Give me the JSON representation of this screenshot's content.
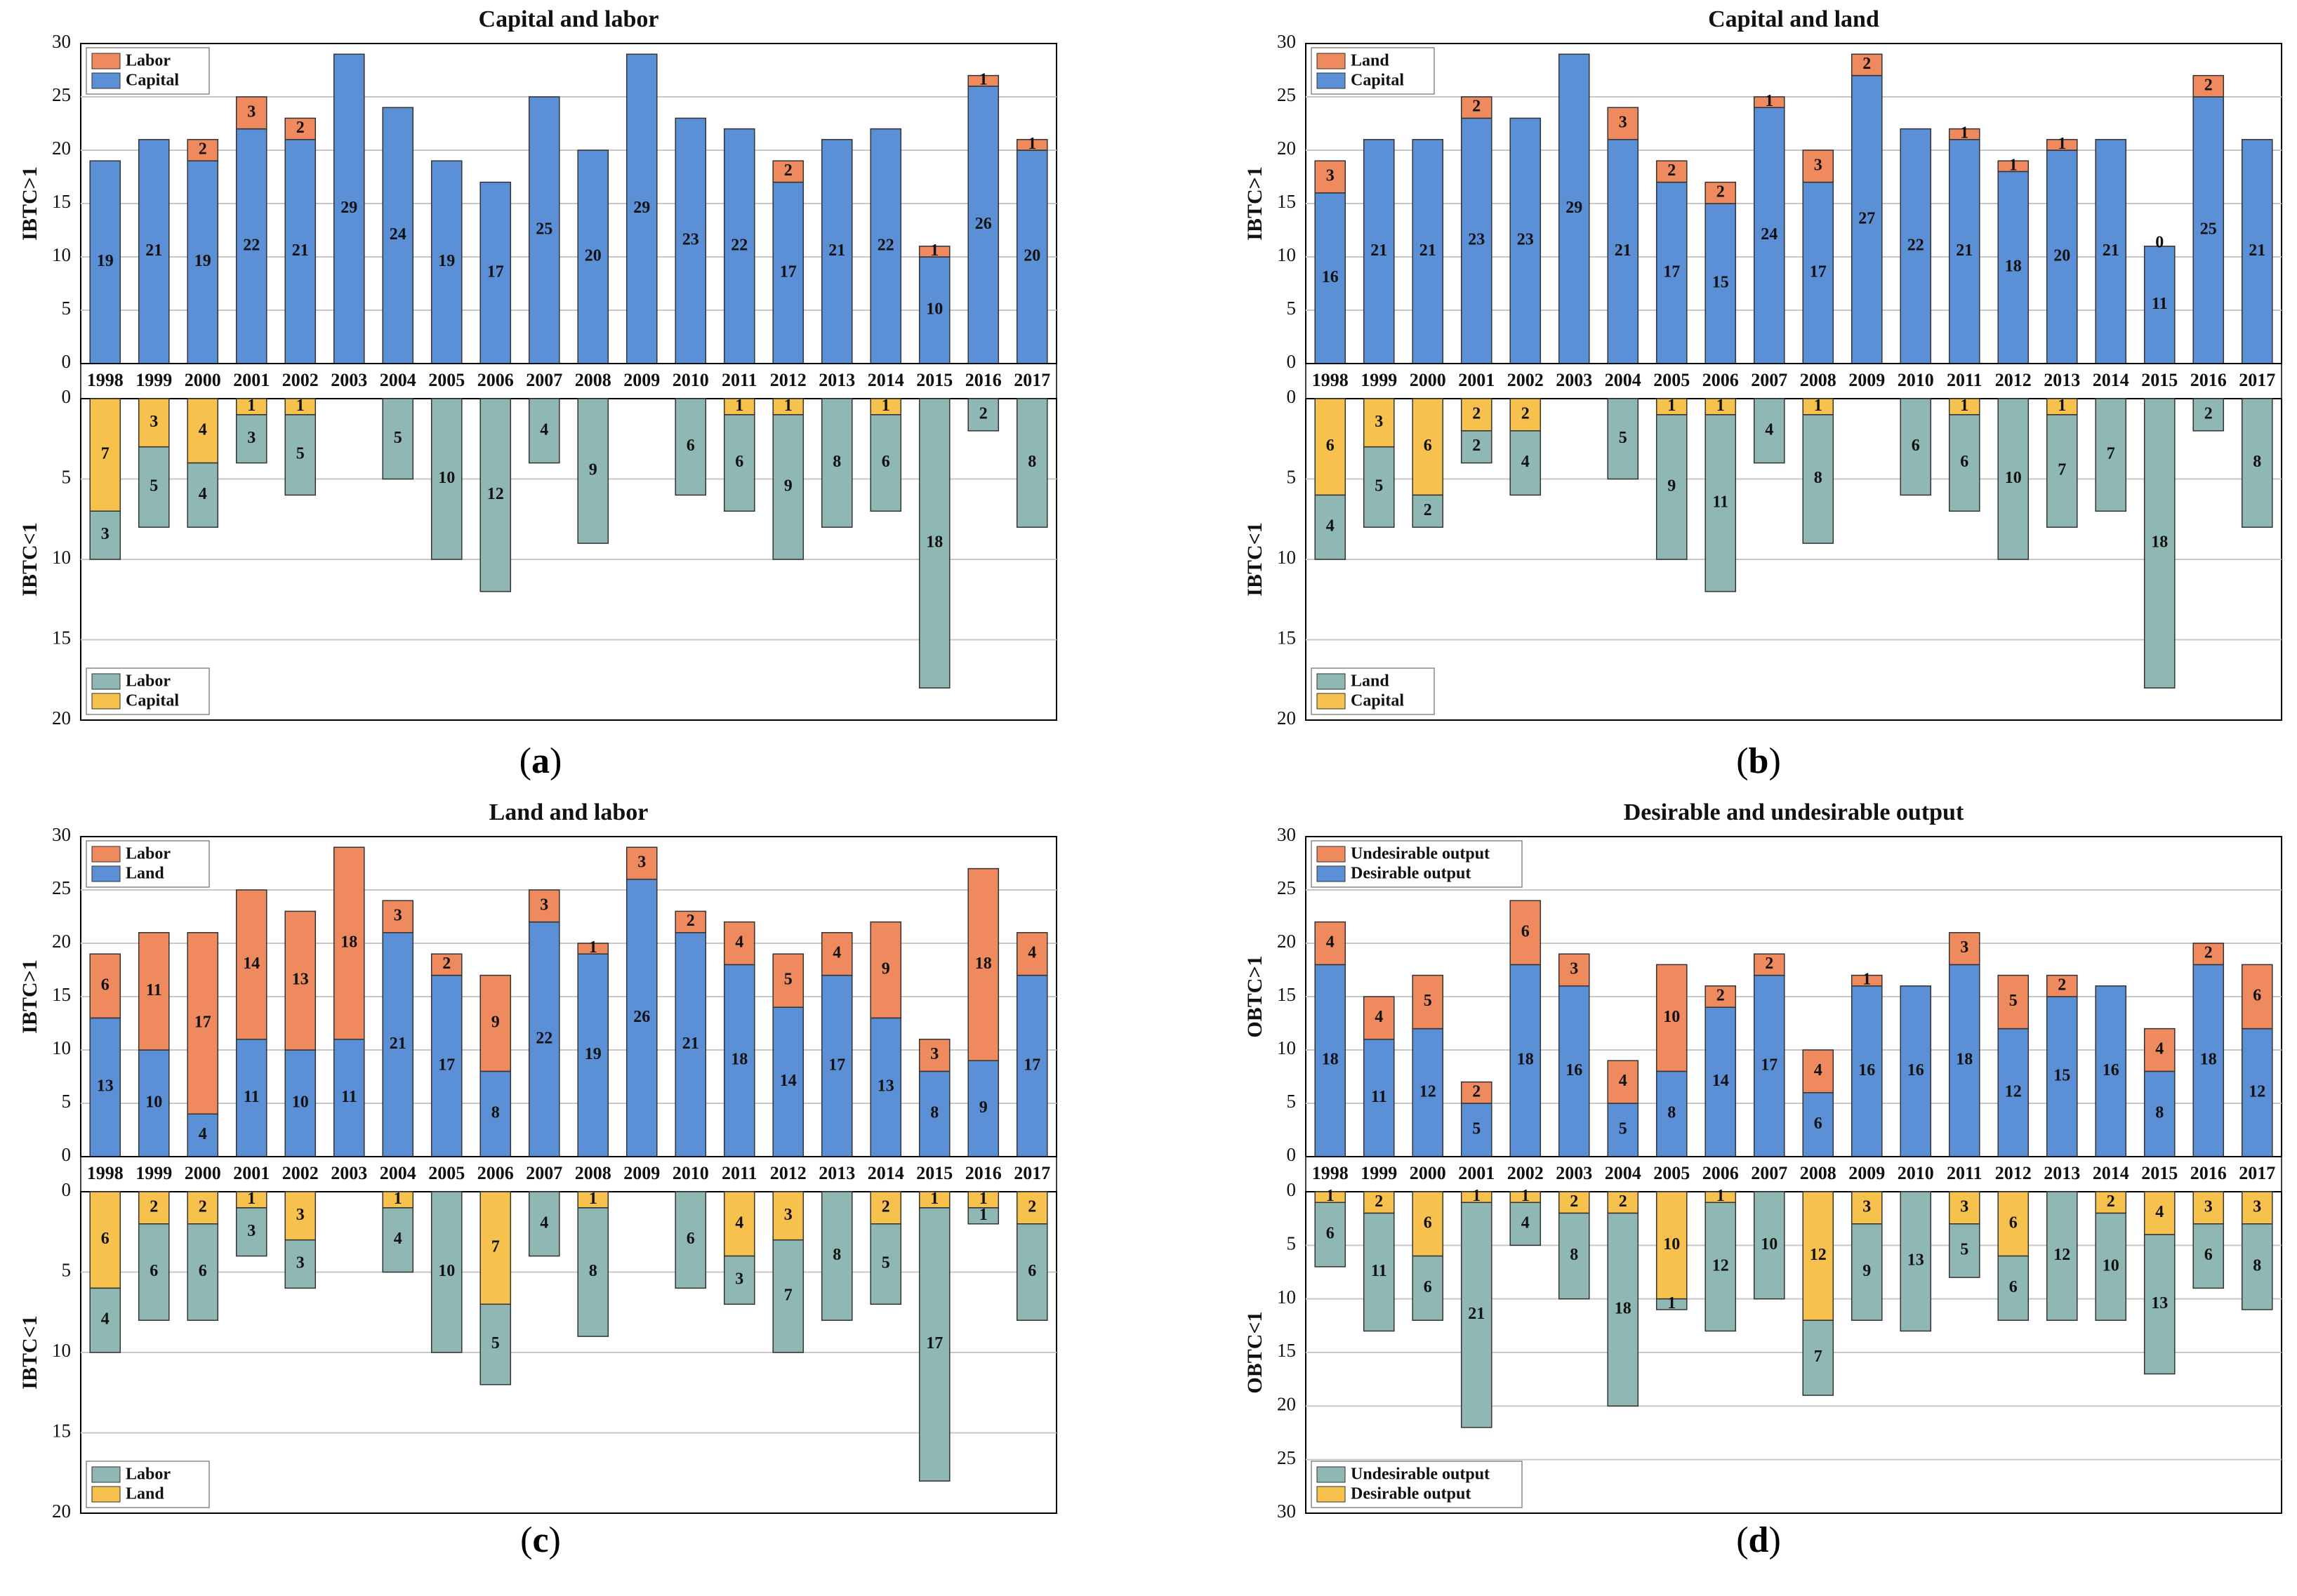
{
  "colors": {
    "top_base": "#5b8fd6",
    "top_stack": "#ee8a5d",
    "bottom_base": "#8fb8b4",
    "bottom_stack": "#f6c14c",
    "grid": "#c8c8c8",
    "axis": "#000000"
  },
  "captions": [
    "(a)",
    "(b)",
    "(c)",
    "(d)"
  ],
  "chart_data": [
    {
      "type": "bar",
      "title": "Capital and labor",
      "categories": [
        "1998",
        "1999",
        "2000",
        "2001",
        "2002",
        "2003",
        "2004",
        "2005",
        "2006",
        "2007",
        "2008",
        "2009",
        "2010",
        "2011",
        "2012",
        "2013",
        "2014",
        "2015",
        "2016",
        "2017"
      ],
      "top": {
        "ylabel": "IBTC>1",
        "ylim": [
          0,
          30
        ],
        "ticks": [
          "0",
          "5",
          "10",
          "15",
          "20",
          "25",
          "30"
        ],
        "legend": [
          "Labor",
          "Capital"
        ],
        "base_name": "Capital",
        "stack_name": "Labor",
        "base": [
          19,
          21,
          19,
          22,
          21,
          29,
          24,
          19,
          17,
          25,
          20,
          29,
          23,
          22,
          17,
          21,
          22,
          10,
          26,
          20
        ],
        "stack": [
          0,
          0,
          2,
          3,
          2,
          0,
          0,
          0,
          0,
          0,
          0,
          0,
          0,
          0,
          2,
          0,
          0,
          1,
          1,
          1
        ],
        "base_labels": [
          "19",
          "21",
          "19",
          "22",
          "21",
          "29",
          "24",
          "19",
          "17",
          "25",
          "20",
          "29",
          "23",
          "22",
          "17",
          "21",
          "22",
          "10",
          "26",
          "20"
        ],
        "stack_labels": [
          "",
          "",
          "2",
          "3",
          "2",
          "",
          "",
          "",
          "",
          "",
          "",
          "",
          "",
          "",
          "2",
          "",
          "",
          "1",
          "1",
          "1"
        ]
      },
      "bottom": {
        "ylabel": "IBTC<1",
        "ylim": [
          0,
          20
        ],
        "ticks": [
          "0",
          "5",
          "10",
          "15",
          "20"
        ],
        "legend": [
          "Labor",
          "Capital"
        ],
        "base_name": "Labor",
        "stack_name": "Capital",
        "stack": [
          7,
          3,
          4,
          1,
          1,
          0,
          0,
          0,
          0,
          0,
          0,
          0,
          0,
          1,
          1,
          0,
          1,
          0,
          0,
          0
        ],
        "base": [
          3,
          5,
          4,
          3,
          5,
          0,
          5,
          10,
          12,
          4,
          9,
          0,
          6,
          6,
          9,
          8,
          6,
          18,
          2,
          8
        ],
        "stack_labels": [
          "7",
          "3",
          "4",
          "1",
          "1",
          "",
          "",
          "",
          "",
          "",
          "",
          "",
          "",
          "1",
          "1",
          "",
          "1",
          "",
          "",
          ""
        ],
        "base_labels": [
          "3",
          "5",
          "4",
          "3",
          "5",
          "",
          "5",
          "10",
          "12",
          "4",
          "9",
          "",
          "6",
          "6",
          "9",
          "8",
          "6",
          "18",
          "2",
          "8"
        ]
      }
    },
    {
      "type": "bar",
      "title": "Capital and land",
      "categories": [
        "1998",
        "1999",
        "2000",
        "2001",
        "2002",
        "2003",
        "2004",
        "2005",
        "2006",
        "2007",
        "2008",
        "2009",
        "2010",
        "2011",
        "2012",
        "2013",
        "2014",
        "2015",
        "2016",
        "2017"
      ],
      "top": {
        "ylabel": "IBTC>1",
        "ylim": [
          0,
          30
        ],
        "ticks": [
          "0",
          "5",
          "10",
          "15",
          "20",
          "25",
          "30"
        ],
        "legend": [
          "Land",
          "Capital"
        ],
        "base_name": "Capital",
        "stack_name": "Land",
        "base": [
          16,
          21,
          21,
          23,
          23,
          29,
          21,
          17,
          15,
          24,
          17,
          27,
          22,
          21,
          18,
          20,
          21,
          11,
          25,
          21
        ],
        "stack": [
          3,
          0,
          0,
          2,
          0,
          0,
          3,
          2,
          2,
          1,
          3,
          2,
          0,
          1,
          1,
          1,
          0,
          0,
          2,
          0
        ],
        "base_labels": [
          "16",
          "21",
          "21",
          "23",
          "23",
          "29",
          "21",
          "17",
          "15",
          "24",
          "17",
          "27",
          "22",
          "21",
          "18",
          "20",
          "21",
          "11",
          "25",
          "21"
        ],
        "stack_labels": [
          "3",
          "",
          "",
          "2",
          "",
          "",
          "3",
          "2",
          "2",
          "1",
          "3",
          "2",
          "",
          "1",
          "1",
          "1",
          "",
          "0",
          "2",
          ""
        ]
      },
      "bottom": {
        "ylabel": "IBTC<1",
        "ylim": [
          0,
          20
        ],
        "ticks": [
          "0",
          "5",
          "10",
          "15",
          "20"
        ],
        "legend": [
          "Land",
          "Capital"
        ],
        "base_name": "Land",
        "stack_name": "Capital",
        "stack": [
          6,
          3,
          6,
          2,
          2,
          0,
          0,
          1,
          1,
          0,
          1,
          0,
          0,
          1,
          0,
          1,
          0,
          0,
          0,
          0
        ],
        "base": [
          4,
          5,
          2,
          2,
          4,
          0,
          5,
          9,
          11,
          4,
          8,
          0,
          6,
          6,
          10,
          7,
          7,
          18,
          2,
          8
        ],
        "stack_labels": [
          "6",
          "3",
          "6",
          "2",
          "2",
          "",
          "",
          "1",
          "1",
          "",
          "1",
          "",
          "",
          "1",
          "",
          "1",
          "",
          "",
          "",
          ""
        ],
        "base_labels": [
          "4",
          "5",
          "2",
          "2",
          "4",
          "",
          "5",
          "9",
          "11",
          "4",
          "8",
          "",
          "6",
          "6",
          "10",
          "7",
          "7",
          "18",
          "2",
          "8"
        ]
      }
    },
    {
      "type": "bar",
      "title": "Land and labor",
      "categories": [
        "1998",
        "1999",
        "2000",
        "2001",
        "2002",
        "2003",
        "2004",
        "2005",
        "2006",
        "2007",
        "2008",
        "2009",
        "2010",
        "2011",
        "2012",
        "2013",
        "2014",
        "2015",
        "2016",
        "2017"
      ],
      "top": {
        "ylabel": "IBTC>1",
        "ylim": [
          0,
          30
        ],
        "ticks": [
          "0",
          "5",
          "10",
          "15",
          "20",
          "25",
          "30"
        ],
        "legend": [
          "Labor",
          "Land"
        ],
        "base_name": "Land",
        "stack_name": "Labor",
        "base": [
          13,
          10,
          4,
          11,
          10,
          11,
          21,
          17,
          8,
          22,
          19,
          26,
          21,
          18,
          14,
          17,
          13,
          8,
          9,
          17
        ],
        "stack": [
          6,
          11,
          17,
          14,
          13,
          18,
          3,
          2,
          9,
          3,
          1,
          3,
          2,
          4,
          5,
          4,
          9,
          3,
          18,
          4
        ],
        "base_labels": [
          "13",
          "10",
          "4",
          "11",
          "10",
          "11",
          "21",
          "17",
          "8",
          "22",
          "19",
          "26",
          "21",
          "18",
          "14",
          "17",
          "13",
          "8",
          "9",
          "17"
        ],
        "stack_labels": [
          "6",
          "11",
          "17",
          "14",
          "13",
          "18",
          "3",
          "2",
          "9",
          "3",
          "1",
          "3",
          "2",
          "4",
          "5",
          "4",
          "9",
          "3",
          "18",
          "4"
        ]
      },
      "bottom": {
        "ylabel": "IBTC<1",
        "ylim": [
          0,
          20
        ],
        "ticks": [
          "0",
          "5",
          "10",
          "15",
          "20"
        ],
        "legend": [
          "Labor",
          "Land"
        ],
        "base_name": "Labor",
        "stack_name": "Land",
        "stack": [
          6,
          2,
          2,
          1,
          3,
          0,
          1,
          0,
          7,
          0,
          1,
          0,
          0,
          4,
          3,
          0,
          2,
          1,
          1,
          2
        ],
        "base": [
          4,
          6,
          6,
          3,
          3,
          0,
          4,
          10,
          5,
          4,
          8,
          0,
          6,
          3,
          7,
          8,
          5,
          17,
          1,
          6
        ],
        "stack_labels": [
          "6",
          "2",
          "2",
          "1",
          "3",
          "",
          "1",
          "",
          "7",
          "",
          "1",
          "",
          "",
          "4",
          "3",
          "",
          "2",
          "1",
          "1",
          "2"
        ],
        "base_labels": [
          "4",
          "6",
          "6",
          "3",
          "3",
          "",
          "4",
          "10",
          "5",
          "4",
          "8",
          "",
          "6",
          "3",
          "7",
          "8",
          "5",
          "17",
          "1",
          "6"
        ]
      }
    },
    {
      "type": "bar",
      "title": "Desirable and undesirable output",
      "categories": [
        "1998",
        "1999",
        "2000",
        "2001",
        "2002",
        "2003",
        "2004",
        "2005",
        "2006",
        "2007",
        "2008",
        "2009",
        "2010",
        "2011",
        "2012",
        "2013",
        "2014",
        "2015",
        "2016",
        "2017"
      ],
      "top": {
        "ylabel": "OBTC>1",
        "ylim": [
          0,
          30
        ],
        "ticks": [
          "0",
          "5",
          "10",
          "15",
          "20",
          "25",
          "30"
        ],
        "legend": [
          "Undesirable output",
          "Desirable output"
        ],
        "base_name": "Desirable output",
        "stack_name": "Undesirable output",
        "base": [
          18,
          11,
          12,
          5,
          18,
          16,
          5,
          8,
          14,
          17,
          6,
          16,
          16,
          18,
          12,
          15,
          16,
          8,
          18,
          12
        ],
        "stack": [
          4,
          4,
          5,
          2,
          6,
          3,
          4,
          10,
          2,
          2,
          4,
          1,
          0,
          3,
          5,
          2,
          0,
          4,
          2,
          6
        ],
        "base_labels": [
          "18",
          "11",
          "12",
          "5",
          "18",
          "16",
          "5",
          "8",
          "14",
          "17",
          "6",
          "16",
          "16",
          "18",
          "12",
          "15",
          "16",
          "8",
          "18",
          "12"
        ],
        "stack_labels": [
          "4",
          "4",
          "5",
          "2",
          "6",
          "3",
          "4",
          "10",
          "2",
          "2",
          "4",
          "1",
          "",
          "3",
          "5",
          "2",
          "",
          "4",
          "2",
          "6"
        ]
      },
      "bottom": {
        "ylabel": "OBTC<1",
        "ylim": [
          0,
          30
        ],
        "ticks": [
          "0",
          "5",
          "10",
          "15",
          "20",
          "25",
          "30"
        ],
        "legend": [
          "Undesirable output",
          "Desirable output"
        ],
        "base_name": "Undesirable output",
        "stack_name": "Desirable output",
        "stack": [
          1,
          2,
          6,
          1,
          1,
          2,
          2,
          10,
          1,
          0,
          12,
          3,
          0,
          3,
          6,
          0,
          2,
          4,
          3,
          3
        ],
        "base": [
          6,
          11,
          6,
          21,
          4,
          8,
          18,
          1,
          12,
          10,
          7,
          9,
          13,
          5,
          6,
          12,
          10,
          13,
          6,
          8
        ],
        "stack_labels": [
          "1",
          "2",
          "6",
          "1",
          "1",
          "2",
          "2",
          "10",
          "1",
          "",
          "12",
          "3",
          "",
          "3",
          "6",
          "",
          "2",
          "4",
          "3",
          "3"
        ],
        "base_labels": [
          "6",
          "11",
          "6",
          "21",
          "4",
          "8",
          "18",
          "1",
          "12",
          "10",
          "7",
          "9",
          "13",
          "5",
          "6",
          "12",
          "10",
          "13",
          "6",
          "8"
        ]
      }
    }
  ]
}
